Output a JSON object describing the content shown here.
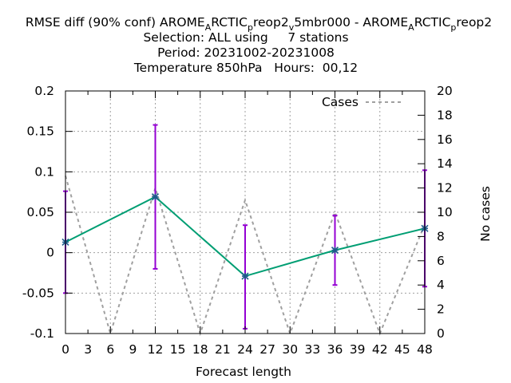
{
  "chart_data": {
    "type": "line",
    "title": {
      "line1": {
        "parts": [
          {
            "t": "RMSE diff (90% conf) AROME"
          },
          {
            "t": "A",
            "sub": true
          },
          {
            "t": "RCTIC"
          },
          {
            "t": "p",
            "sub": true
          },
          {
            "t": "reop2"
          },
          {
            "t": "v",
            "sub": true
          },
          {
            "t": "5mbr000 - AROME"
          },
          {
            "t": "A",
            "sub": true
          },
          {
            "t": "RCTIC"
          },
          {
            "t": "p",
            "sub": true
          },
          {
            "t": "reop2"
          }
        ]
      },
      "line2": "Selection: ALL using     7 stations",
      "line3": "Period: 20231002-20231008",
      "line4": "Temperature 850hPa   Hours:  00,12"
    },
    "xlabel": "Forecast length",
    "ylabel_right": "No cases",
    "xlim": [
      0,
      48
    ],
    "ylim": [
      -0.1,
      0.2
    ],
    "y2lim": [
      0,
      20
    ],
    "x_ticks": [
      0,
      3,
      6,
      9,
      12,
      15,
      18,
      21,
      24,
      27,
      30,
      33,
      36,
      39,
      42,
      45,
      48
    ],
    "y_ticks": [
      -0.1,
      -0.05,
      0,
      0.05,
      0.1,
      0.15,
      0.2
    ],
    "y_tick_labels": [
      "-0.1",
      "-0.05",
      "0",
      "0.05",
      "0.1",
      "0.15",
      "0.2"
    ],
    "y2_ticks": [
      0,
      2,
      4,
      6,
      8,
      10,
      12,
      14,
      16,
      18,
      20
    ],
    "grid": true,
    "legend": {
      "position": "top-right",
      "entries": [
        "Cases"
      ]
    },
    "series": [
      {
        "role": "rmse-diff",
        "color": "#009e73",
        "x": [
          0,
          12,
          24,
          36,
          48
        ],
        "y": [
          0.013,
          0.069,
          -0.029,
          0.003,
          0.03
        ]
      },
      {
        "role": "confidence-interval",
        "color": "#9400d3",
        "x": [
          0,
          12,
          24,
          36,
          48
        ],
        "low": [
          -0.05,
          -0.02,
          -0.094,
          -0.04,
          -0.042
        ],
        "high": [
          0.076,
          0.158,
          0.034,
          0.046,
          0.102
        ]
      },
      {
        "name": "Cases",
        "axis": "right",
        "color": "#a0a0a0",
        "x": [
          0,
          6,
          12,
          18,
          24,
          30,
          36,
          42,
          48
        ],
        "y": [
          13,
          0,
          12,
          0,
          11,
          0,
          10,
          0,
          9
        ]
      }
    ]
  }
}
